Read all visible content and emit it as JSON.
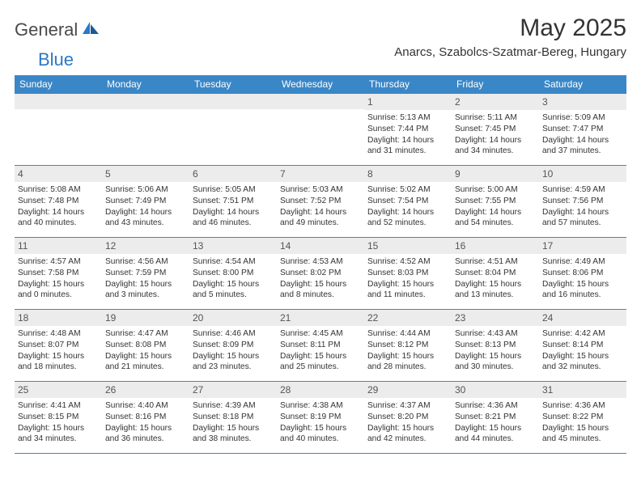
{
  "logo": {
    "general": "General",
    "blue": "Blue"
  },
  "title": "May 2025",
  "location": "Anarcs, Szabolcs-Szatmar-Bereg, Hungary",
  "weekdays": [
    "Sunday",
    "Monday",
    "Tuesday",
    "Wednesday",
    "Thursday",
    "Friday",
    "Saturday"
  ],
  "colors": {
    "header_bg": "#3a87c8",
    "header_text": "#ffffff",
    "daynum_bg": "#ececec",
    "border": "#3a87c8",
    "text": "#333333",
    "logo_gray": "#4a4a4a",
    "logo_blue": "#2b78c5"
  },
  "weeks": [
    [
      {
        "num": "",
        "sunrise": "",
        "sunset": "",
        "daylight": ""
      },
      {
        "num": "",
        "sunrise": "",
        "sunset": "",
        "daylight": ""
      },
      {
        "num": "",
        "sunrise": "",
        "sunset": "",
        "daylight": ""
      },
      {
        "num": "",
        "sunrise": "",
        "sunset": "",
        "daylight": ""
      },
      {
        "num": "1",
        "sunrise": "Sunrise: 5:13 AM",
        "sunset": "Sunset: 7:44 PM",
        "daylight": "Daylight: 14 hours and 31 minutes."
      },
      {
        "num": "2",
        "sunrise": "Sunrise: 5:11 AM",
        "sunset": "Sunset: 7:45 PM",
        "daylight": "Daylight: 14 hours and 34 minutes."
      },
      {
        "num": "3",
        "sunrise": "Sunrise: 5:09 AM",
        "sunset": "Sunset: 7:47 PM",
        "daylight": "Daylight: 14 hours and 37 minutes."
      }
    ],
    [
      {
        "num": "4",
        "sunrise": "Sunrise: 5:08 AM",
        "sunset": "Sunset: 7:48 PM",
        "daylight": "Daylight: 14 hours and 40 minutes."
      },
      {
        "num": "5",
        "sunrise": "Sunrise: 5:06 AM",
        "sunset": "Sunset: 7:49 PM",
        "daylight": "Daylight: 14 hours and 43 minutes."
      },
      {
        "num": "6",
        "sunrise": "Sunrise: 5:05 AM",
        "sunset": "Sunset: 7:51 PM",
        "daylight": "Daylight: 14 hours and 46 minutes."
      },
      {
        "num": "7",
        "sunrise": "Sunrise: 5:03 AM",
        "sunset": "Sunset: 7:52 PM",
        "daylight": "Daylight: 14 hours and 49 minutes."
      },
      {
        "num": "8",
        "sunrise": "Sunrise: 5:02 AM",
        "sunset": "Sunset: 7:54 PM",
        "daylight": "Daylight: 14 hours and 52 minutes."
      },
      {
        "num": "9",
        "sunrise": "Sunrise: 5:00 AM",
        "sunset": "Sunset: 7:55 PM",
        "daylight": "Daylight: 14 hours and 54 minutes."
      },
      {
        "num": "10",
        "sunrise": "Sunrise: 4:59 AM",
        "sunset": "Sunset: 7:56 PM",
        "daylight": "Daylight: 14 hours and 57 minutes."
      }
    ],
    [
      {
        "num": "11",
        "sunrise": "Sunrise: 4:57 AM",
        "sunset": "Sunset: 7:58 PM",
        "daylight": "Daylight: 15 hours and 0 minutes."
      },
      {
        "num": "12",
        "sunrise": "Sunrise: 4:56 AM",
        "sunset": "Sunset: 7:59 PM",
        "daylight": "Daylight: 15 hours and 3 minutes."
      },
      {
        "num": "13",
        "sunrise": "Sunrise: 4:54 AM",
        "sunset": "Sunset: 8:00 PM",
        "daylight": "Daylight: 15 hours and 5 minutes."
      },
      {
        "num": "14",
        "sunrise": "Sunrise: 4:53 AM",
        "sunset": "Sunset: 8:02 PM",
        "daylight": "Daylight: 15 hours and 8 minutes."
      },
      {
        "num": "15",
        "sunrise": "Sunrise: 4:52 AM",
        "sunset": "Sunset: 8:03 PM",
        "daylight": "Daylight: 15 hours and 11 minutes."
      },
      {
        "num": "16",
        "sunrise": "Sunrise: 4:51 AM",
        "sunset": "Sunset: 8:04 PM",
        "daylight": "Daylight: 15 hours and 13 minutes."
      },
      {
        "num": "17",
        "sunrise": "Sunrise: 4:49 AM",
        "sunset": "Sunset: 8:06 PM",
        "daylight": "Daylight: 15 hours and 16 minutes."
      }
    ],
    [
      {
        "num": "18",
        "sunrise": "Sunrise: 4:48 AM",
        "sunset": "Sunset: 8:07 PM",
        "daylight": "Daylight: 15 hours and 18 minutes."
      },
      {
        "num": "19",
        "sunrise": "Sunrise: 4:47 AM",
        "sunset": "Sunset: 8:08 PM",
        "daylight": "Daylight: 15 hours and 21 minutes."
      },
      {
        "num": "20",
        "sunrise": "Sunrise: 4:46 AM",
        "sunset": "Sunset: 8:09 PM",
        "daylight": "Daylight: 15 hours and 23 minutes."
      },
      {
        "num": "21",
        "sunrise": "Sunrise: 4:45 AM",
        "sunset": "Sunset: 8:11 PM",
        "daylight": "Daylight: 15 hours and 25 minutes."
      },
      {
        "num": "22",
        "sunrise": "Sunrise: 4:44 AM",
        "sunset": "Sunset: 8:12 PM",
        "daylight": "Daylight: 15 hours and 28 minutes."
      },
      {
        "num": "23",
        "sunrise": "Sunrise: 4:43 AM",
        "sunset": "Sunset: 8:13 PM",
        "daylight": "Daylight: 15 hours and 30 minutes."
      },
      {
        "num": "24",
        "sunrise": "Sunrise: 4:42 AM",
        "sunset": "Sunset: 8:14 PM",
        "daylight": "Daylight: 15 hours and 32 minutes."
      }
    ],
    [
      {
        "num": "25",
        "sunrise": "Sunrise: 4:41 AM",
        "sunset": "Sunset: 8:15 PM",
        "daylight": "Daylight: 15 hours and 34 minutes."
      },
      {
        "num": "26",
        "sunrise": "Sunrise: 4:40 AM",
        "sunset": "Sunset: 8:16 PM",
        "daylight": "Daylight: 15 hours and 36 minutes."
      },
      {
        "num": "27",
        "sunrise": "Sunrise: 4:39 AM",
        "sunset": "Sunset: 8:18 PM",
        "daylight": "Daylight: 15 hours and 38 minutes."
      },
      {
        "num": "28",
        "sunrise": "Sunrise: 4:38 AM",
        "sunset": "Sunset: 8:19 PM",
        "daylight": "Daylight: 15 hours and 40 minutes."
      },
      {
        "num": "29",
        "sunrise": "Sunrise: 4:37 AM",
        "sunset": "Sunset: 8:20 PM",
        "daylight": "Daylight: 15 hours and 42 minutes."
      },
      {
        "num": "30",
        "sunrise": "Sunrise: 4:36 AM",
        "sunset": "Sunset: 8:21 PM",
        "daylight": "Daylight: 15 hours and 44 minutes."
      },
      {
        "num": "31",
        "sunrise": "Sunrise: 4:36 AM",
        "sunset": "Sunset: 8:22 PM",
        "daylight": "Daylight: 15 hours and 45 minutes."
      }
    ]
  ]
}
